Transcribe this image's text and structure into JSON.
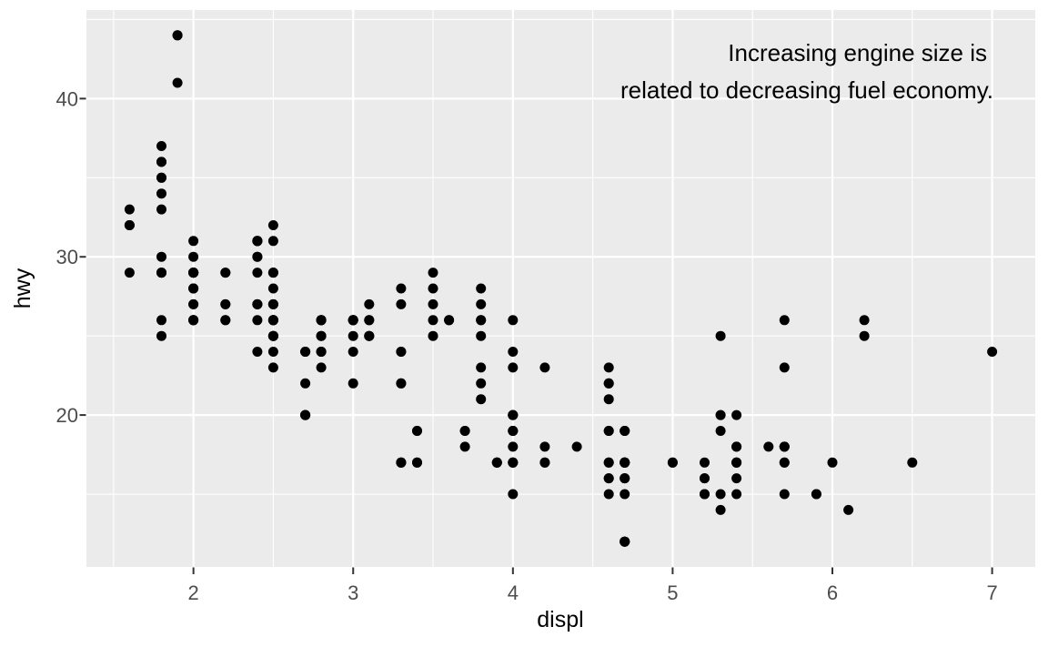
{
  "chart_data": {
    "type": "scatter",
    "title": "",
    "xlabel": "displ",
    "ylabel": "hwy",
    "legend": "none",
    "grid": true,
    "annotation": {
      "lines": [
        "Increasing engine size is",
        "related to decreasing fuel economy."
      ],
      "position": "top-right",
      "anchor": {
        "x": 7.0,
        "y": 44
      },
      "align": "right"
    },
    "x_axis": {
      "ticks": [
        2,
        3,
        4,
        5,
        6,
        7
      ],
      "minor": [
        1.5,
        2.5,
        3.5,
        4.5,
        5.5,
        6.5
      ],
      "range": [
        1.33,
        7.27
      ]
    },
    "y_axis": {
      "ticks": [
        20,
        30,
        40
      ],
      "minor": [
        15,
        25,
        35,
        45
      ],
      "range": [
        10.4,
        45.6
      ]
    },
    "style": {
      "outer_bg": "#FFFFFF",
      "panel_bg": "#EBEBEB",
      "grid_color": "#FFFFFF",
      "point_color": "#000000",
      "tick_label_color": "#4D4D4D",
      "tick_mark_color": "#333333",
      "axis_title_color": "#000000",
      "annotation_color": "#000000"
    },
    "points": [
      [
        1.8,
        29
      ],
      [
        1.8,
        29
      ],
      [
        2.0,
        31
      ],
      [
        2.0,
        30
      ],
      [
        2.8,
        26
      ],
      [
        2.8,
        26
      ],
      [
        3.1,
        27
      ],
      [
        1.8,
        26
      ],
      [
        1.8,
        25
      ],
      [
        2.0,
        28
      ],
      [
        2.0,
        27
      ],
      [
        2.8,
        25
      ],
      [
        2.8,
        25
      ],
      [
        3.1,
        25
      ],
      [
        3.1,
        25
      ],
      [
        2.8,
        24
      ],
      [
        3.1,
        25
      ],
      [
        4.2,
        23
      ],
      [
        5.3,
        20
      ],
      [
        5.3,
        15
      ],
      [
        5.3,
        20
      ],
      [
        5.7,
        17
      ],
      [
        6.0,
        17
      ],
      [
        5.7,
        26
      ],
      [
        5.7,
        23
      ],
      [
        6.2,
        26
      ],
      [
        6.2,
        25
      ],
      [
        7.0,
        24
      ],
      [
        5.3,
        19
      ],
      [
        5.3,
        14
      ],
      [
        5.7,
        15
      ],
      [
        6.5,
        17
      ],
      [
        2.4,
        27
      ],
      [
        2.4,
        30
      ],
      [
        3.1,
        26
      ],
      [
        3.5,
        29
      ],
      [
        3.6,
        26
      ],
      [
        2.4,
        24
      ],
      [
        3.0,
        24
      ],
      [
        3.3,
        22
      ],
      [
        3.3,
        22
      ],
      [
        3.3,
        24
      ],
      [
        3.3,
        24
      ],
      [
        3.3,
        17
      ],
      [
        3.8,
        22
      ],
      [
        3.8,
        21
      ],
      [
        3.8,
        23
      ],
      [
        4.0,
        23
      ],
      [
        3.7,
        19
      ],
      [
        3.7,
        18
      ],
      [
        3.9,
        17
      ],
      [
        3.9,
        17
      ],
      [
        4.7,
        19
      ],
      [
        4.7,
        19
      ],
      [
        4.7,
        12
      ],
      [
        5.2,
        17
      ],
      [
        5.2,
        15
      ],
      [
        3.9,
        17
      ],
      [
        4.7,
        17
      ],
      [
        4.7,
        12
      ],
      [
        4.7,
        17
      ],
      [
        5.2,
        16
      ],
      [
        5.7,
        18
      ],
      [
        5.9,
        15
      ],
      [
        4.7,
        16
      ],
      [
        4.7,
        12
      ],
      [
        4.7,
        17
      ],
      [
        4.7,
        17
      ],
      [
        4.7,
        16
      ],
      [
        4.7,
        16
      ],
      [
        5.2,
        15
      ],
      [
        5.2,
        16
      ],
      [
        5.7,
        17
      ],
      [
        5.9,
        15
      ],
      [
        4.6,
        17
      ],
      [
        5.4,
        17
      ],
      [
        5.4,
        18
      ],
      [
        4.0,
        17
      ],
      [
        4.0,
        17
      ],
      [
        4.0,
        19
      ],
      [
        4.0,
        19
      ],
      [
        4.6,
        19
      ],
      [
        5.0,
        17
      ],
      [
        4.2,
        17
      ],
      [
        4.2,
        17
      ],
      [
        4.6,
        16
      ],
      [
        4.6,
        16
      ],
      [
        4.6,
        17
      ],
      [
        5.4,
        15
      ],
      [
        5.4,
        17
      ],
      [
        3.8,
        26
      ],
      [
        3.8,
        25
      ],
      [
        4.0,
        26
      ],
      [
        4.0,
        24
      ],
      [
        4.6,
        21
      ],
      [
        4.6,
        22
      ],
      [
        4.6,
        23
      ],
      [
        4.6,
        22
      ],
      [
        5.4,
        20
      ],
      [
        1.6,
        33
      ],
      [
        1.6,
        32
      ],
      [
        1.6,
        32
      ],
      [
        1.6,
        29
      ],
      [
        1.6,
        32
      ],
      [
        1.8,
        34
      ],
      [
        1.8,
        36
      ],
      [
        1.8,
        36
      ],
      [
        2.0,
        29
      ],
      [
        2.4,
        26
      ],
      [
        2.4,
        27
      ],
      [
        2.4,
        30
      ],
      [
        2.4,
        31
      ],
      [
        2.5,
        26
      ],
      [
        2.5,
        26
      ],
      [
        3.3,
        28
      ],
      [
        2.0,
        26
      ],
      [
        2.0,
        29
      ],
      [
        2.0,
        28
      ],
      [
        2.0,
        27
      ],
      [
        2.7,
        24
      ],
      [
        2.7,
        24
      ],
      [
        2.7,
        24
      ],
      [
        3.0,
        22
      ],
      [
        3.7,
        19
      ],
      [
        4.0,
        20
      ],
      [
        4.7,
        17
      ],
      [
        4.7,
        12
      ],
      [
        4.7,
        19
      ],
      [
        5.7,
        18
      ],
      [
        6.1,
        14
      ],
      [
        4.0,
        15
      ],
      [
        4.2,
        18
      ],
      [
        4.4,
        18
      ],
      [
        4.6,
        15
      ],
      [
        5.4,
        17
      ],
      [
        5.4,
        16
      ],
      [
        5.4,
        18
      ],
      [
        4.0,
        17
      ],
      [
        4.0,
        19
      ],
      [
        4.6,
        19
      ],
      [
        5.0,
        17
      ],
      [
        2.4,
        29
      ],
      [
        2.4,
        27
      ],
      [
        2.5,
        31
      ],
      [
        2.5,
        32
      ],
      [
        3.5,
        27
      ],
      [
        3.5,
        26
      ],
      [
        3.0,
        26
      ],
      [
        3.0,
        25
      ],
      [
        3.5,
        25
      ],
      [
        3.3,
        17
      ],
      [
        3.3,
        17
      ],
      [
        4.0,
        20
      ],
      [
        5.6,
        18
      ],
      [
        3.1,
        26
      ],
      [
        3.8,
        26
      ],
      [
        3.8,
        27
      ],
      [
        3.8,
        28
      ],
      [
        5.3,
        25
      ],
      [
        2.5,
        25
      ],
      [
        2.5,
        24
      ],
      [
        2.5,
        27
      ],
      [
        2.5,
        25
      ],
      [
        2.5,
        26
      ],
      [
        2.5,
        23
      ],
      [
        2.2,
        26
      ],
      [
        2.2,
        26
      ],
      [
        2.5,
        26
      ],
      [
        2.5,
        26
      ],
      [
        2.5,
        25
      ],
      [
        2.5,
        27
      ],
      [
        2.5,
        25
      ],
      [
        2.5,
        27
      ],
      [
        2.7,
        20
      ],
      [
        2.7,
        20
      ],
      [
        3.4,
        19
      ],
      [
        3.4,
        17
      ],
      [
        4.0,
        20
      ],
      [
        4.7,
        17
      ],
      [
        2.2,
        29
      ],
      [
        2.2,
        27
      ],
      [
        2.4,
        31
      ],
      [
        2.4,
        31
      ],
      [
        3.0,
        26
      ],
      [
        3.0,
        26
      ],
      [
        3.5,
        28
      ],
      [
        2.2,
        27
      ],
      [
        2.2,
        29
      ],
      [
        2.4,
        31
      ],
      [
        2.4,
        31
      ],
      [
        3.0,
        26
      ],
      [
        3.0,
        26
      ],
      [
        3.3,
        27
      ],
      [
        1.8,
        30
      ],
      [
        1.8,
        33
      ],
      [
        1.8,
        35
      ],
      [
        1.8,
        37
      ],
      [
        1.8,
        35
      ],
      [
        4.7,
        15
      ],
      [
        5.7,
        18
      ],
      [
        2.7,
        20
      ],
      [
        2.7,
        20
      ],
      [
        2.7,
        22
      ],
      [
        3.4,
        17
      ],
      [
        3.4,
        19
      ],
      [
        4.0,
        18
      ],
      [
        4.0,
        20
      ],
      [
        2.0,
        29
      ],
      [
        2.0,
        26
      ],
      [
        2.0,
        29
      ],
      [
        2.0,
        29
      ],
      [
        2.8,
        24
      ],
      [
        1.9,
        44
      ],
      [
        2.0,
        29
      ],
      [
        2.0,
        26
      ],
      [
        2.0,
        29
      ],
      [
        2.0,
        29
      ],
      [
        2.5,
        29
      ],
      [
        2.5,
        29
      ],
      [
        2.8,
        23
      ],
      [
        2.8,
        24
      ],
      [
        1.9,
        44
      ],
      [
        1.9,
        41
      ],
      [
        2.0,
        29
      ],
      [
        2.0,
        26
      ],
      [
        2.5,
        28
      ],
      [
        2.5,
        29
      ],
      [
        1.8,
        29
      ],
      [
        1.8,
        29
      ],
      [
        2.0,
        28
      ],
      [
        2.0,
        29
      ],
      [
        2.8,
        26
      ],
      [
        2.8,
        26
      ],
      [
        3.6,
        26
      ]
    ]
  }
}
